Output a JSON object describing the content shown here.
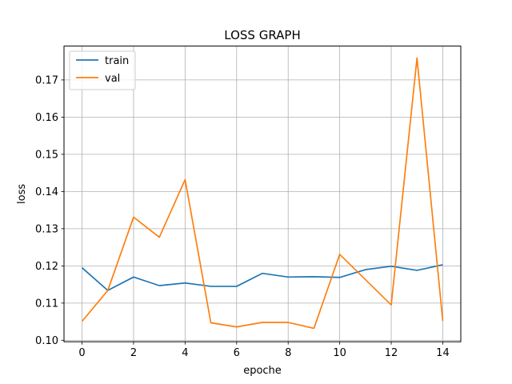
{
  "chart_data": {
    "type": "line",
    "title": "LOSS GRAPH",
    "xlabel": "epoche",
    "ylabel": "loss",
    "x": [
      0,
      1,
      2,
      3,
      4,
      5,
      6,
      7,
      8,
      9,
      10,
      11,
      12,
      13,
      14
    ],
    "xlim": [
      -0.7,
      14.7
    ],
    "ylim": [
      0.0996,
      0.1791
    ],
    "xticks": [
      0,
      2,
      4,
      6,
      8,
      10,
      12,
      14
    ],
    "yticks": [
      0.1,
      0.11,
      0.12,
      0.13,
      0.14,
      0.15,
      0.16,
      0.17
    ],
    "ytick_labels": [
      "0.10",
      "0.11",
      "0.12",
      "0.13",
      "0.14",
      "0.15",
      "0.16",
      "0.17"
    ],
    "grid": true,
    "legend_position": "top-left",
    "series": [
      {
        "name": "train",
        "color": "#1f77b4",
        "values": [
          0.1195,
          0.1134,
          0.117,
          0.1147,
          0.1154,
          0.1145,
          0.1145,
          0.118,
          0.117,
          0.1171,
          0.1169,
          0.119,
          0.1199,
          0.1188,
          0.1203
        ]
      },
      {
        "name": "val",
        "color": "#ff7f0e",
        "values": [
          0.1051,
          0.1134,
          0.1331,
          0.1277,
          0.1432,
          0.1047,
          0.1036,
          0.1048,
          0.1048,
          0.1032,
          0.1231,
          0.1163,
          0.1095,
          0.1759,
          0.1052
        ]
      }
    ]
  }
}
